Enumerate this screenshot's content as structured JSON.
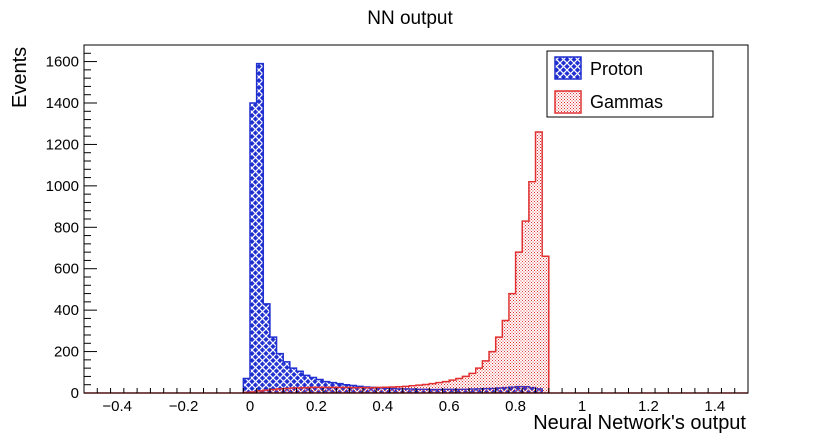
{
  "chart_data": {
    "type": "bar",
    "title": "NN output",
    "xlabel": "Neural Network's output",
    "ylabel": "Events",
    "xlim": [
      -0.5,
      1.5
    ],
    "ylim": [
      0,
      1680
    ],
    "x_ticks": [
      -0.4,
      -0.2,
      0,
      0.2,
      0.4,
      0.6,
      0.8,
      1,
      1.2,
      1.4
    ],
    "x_tick_labels": [
      "−0.4",
      "−0.2",
      "0",
      "0.2",
      "0.4",
      "0.6",
      "0.8",
      "1",
      "1.2",
      "1.4"
    ],
    "y_ticks": [
      0,
      200,
      400,
      600,
      800,
      1000,
      1200,
      1400,
      1600
    ],
    "y_tick_labels": [
      "0",
      "200",
      "400",
      "600",
      "800",
      "1000",
      "1200",
      "1400",
      "1600"
    ],
    "bin_width": 0.02,
    "bin_start": -0.02,
    "legend_position": "top-right",
    "grid": false,
    "series": [
      {
        "name": "Proton",
        "color": "#1f2fd0",
        "fill": "crosshatch",
        "values": [
          70,
          1400,
          1590,
          430,
          270,
          190,
          150,
          120,
          105,
          85,
          75,
          65,
          55,
          50,
          45,
          40,
          36,
          32,
          29,
          27,
          25,
          23,
          22,
          20,
          20,
          19,
          18,
          18,
          17,
          17,
          18,
          18,
          18,
          18,
          19,
          20,
          21,
          22,
          24,
          26,
          28,
          31,
          30,
          26,
          20
        ]
      },
      {
        "name": "Gammas",
        "color": "#e03030",
        "fill": "dotted",
        "values": [
          3,
          5,
          10,
          14,
          17,
          20,
          22,
          24,
          25,
          26,
          27,
          27,
          27,
          27,
          27,
          27,
          26,
          26,
          26,
          26,
          27,
          28,
          29,
          30,
          32,
          35,
          38,
          41,
          45,
          50,
          55,
          62,
          70,
          80,
          95,
          120,
          155,
          200,
          270,
          350,
          480,
          680,
          830,
          1020,
          1260,
          660
        ]
      }
    ]
  }
}
